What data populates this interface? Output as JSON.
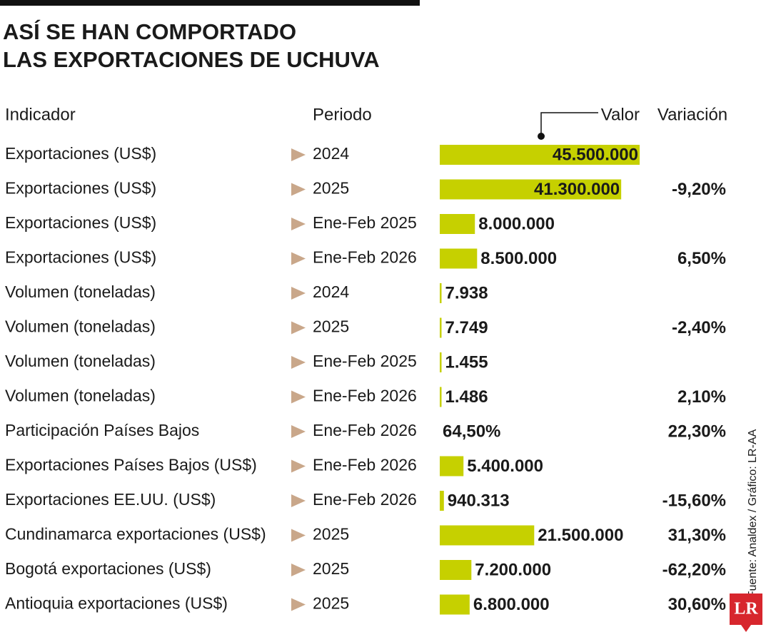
{
  "title": [
    "ASÍ SE HAN COMPORTADO",
    "LAS EXPORTACIONES DE UCHUVA"
  ],
  "header": {
    "indicator": "Indicador",
    "period": "Periodo",
    "value": "Valor",
    "variation": "Variación"
  },
  "rows": [
    {
      "indicator": "Exportaciones (US$)",
      "period": "2024",
      "value": 45500000,
      "value_label": "45.500.000",
      "variation": null
    },
    {
      "indicator": "Exportaciones (US$)",
      "period": "2025",
      "value": 41300000,
      "value_label": "41.300.000",
      "variation": "-9,20%"
    },
    {
      "indicator": "Exportaciones (US$)",
      "period": "Ene-Feb 2025",
      "value": 8000000,
      "value_label": "8.000.000",
      "variation": null
    },
    {
      "indicator": "Exportaciones (US$)",
      "period": "Ene-Feb 2026",
      "value": 8500000,
      "value_label": "8.500.000",
      "variation": "6,50%"
    },
    {
      "indicator": "Volumen (toneladas)",
      "period": "2024",
      "value": 7938,
      "value_label": "7.938",
      "variation": null
    },
    {
      "indicator": "Volumen (toneladas)",
      "period": "2025",
      "value": 7749,
      "value_label": "7.749",
      "variation": "-2,40%"
    },
    {
      "indicator": "Volumen (toneladas)",
      "period": "Ene-Feb 2025",
      "value": 1455,
      "value_label": "1.455",
      "variation": null
    },
    {
      "indicator": "Volumen (toneladas)",
      "period": "Ene-Feb 2026",
      "value": 1486,
      "value_label": "1.486",
      "variation": "2,10%"
    },
    {
      "indicator": "Participación Países Bajos",
      "period": "Ene-Feb 2026",
      "value": null,
      "value_label": "64,50%",
      "variation": "22,30%"
    },
    {
      "indicator": "Exportaciones Países Bajos (US$)",
      "period": "Ene-Feb 2026",
      "value": 5400000,
      "value_label": "5.400.000",
      "variation": null
    },
    {
      "indicator": "Exportaciones EE.UU. (US$)",
      "period": "Ene-Feb 2026",
      "value": 940313,
      "value_label": "940.313",
      "variation": "-15,60%"
    },
    {
      "indicator": "Cundinamarca exportaciones (US$)",
      "period": "2025",
      "value": 21500000,
      "value_label": "21.500.000",
      "variation": "31,30%"
    },
    {
      "indicator": "Bogotá exportaciones (US$)",
      "period": "2025",
      "value": 7200000,
      "value_label": "7.200.000",
      "variation": "-62,20%"
    },
    {
      "indicator": "Antioquia exportaciones (US$)",
      "period": "2025",
      "value": 6800000,
      "value_label": "6.800.000",
      "variation": "30,60%"
    }
  ],
  "bar_color": "#c6d000",
  "source": "Fuente: Analdex / Gráfico: LR-AA",
  "logo": "LR"
}
